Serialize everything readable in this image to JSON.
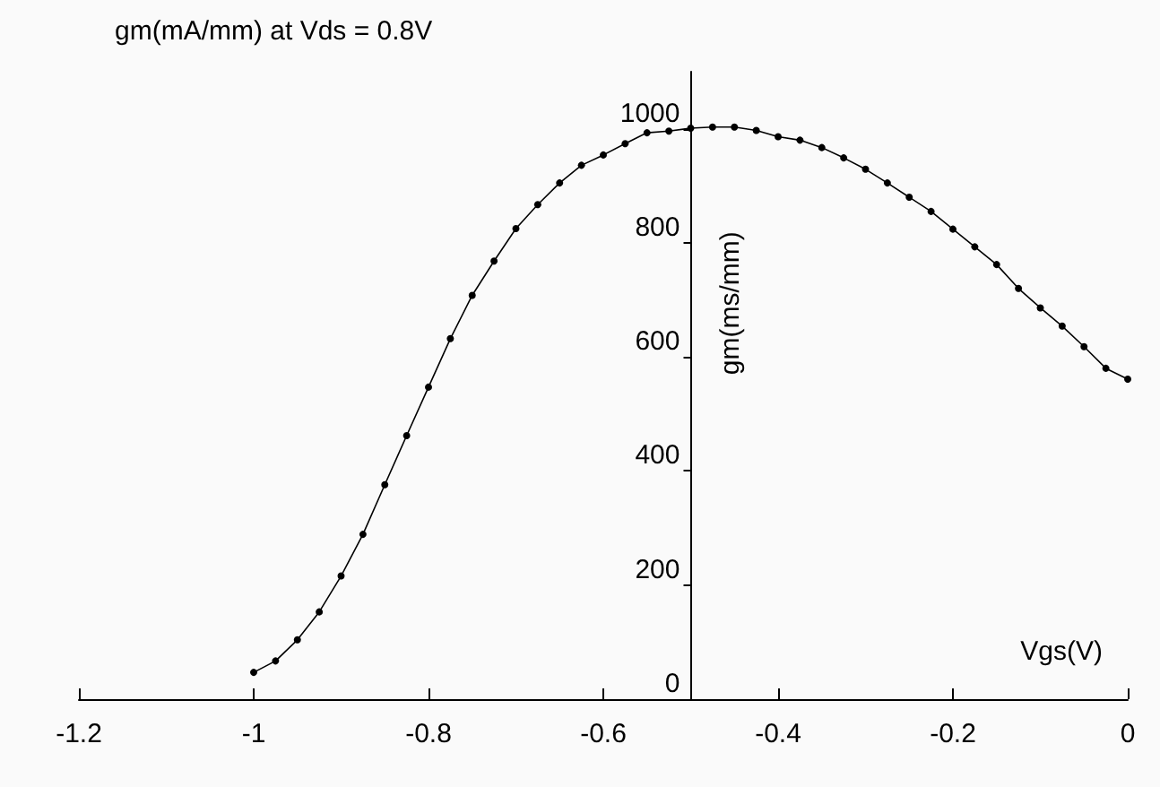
{
  "chart_data": {
    "type": "line",
    "title": "gm(mA/mm) at Vds = 0.8V",
    "xlabel": "Vgs(V)",
    "ylabel": "gm(ms/mm)",
    "x": [
      -1,
      -0.975,
      -0.95,
      -0.925,
      -0.9,
      -0.875,
      -0.85,
      -0.825,
      -0.8,
      -0.775,
      -0.75,
      -0.725,
      -0.7,
      -0.675,
      -0.65,
      -0.625,
      -0.6,
      -0.575,
      -0.55,
      -0.525,
      -0.5,
      -0.475,
      -0.45,
      -0.425,
      -0.4,
      -0.375,
      -0.35,
      -0.325,
      -0.3,
      -0.275,
      -0.25,
      -0.225,
      -0.2,
      -0.175,
      -0.15,
      -0.125,
      -0.1,
      -0.075,
      -0.05,
      -0.025,
      0
    ],
    "series": [
      {
        "color": "#000000",
        "values": [
          47,
          67,
          104,
          153,
          216,
          289,
          376,
          462,
          547,
          632,
          708,
          768,
          825,
          867,
          905,
          936,
          954,
          974,
          993,
          996,
          1001,
          1003,
          1003,
          997,
          986,
          980,
          967,
          949,
          929,
          905,
          880,
          855,
          824,
          793,
          762,
          720,
          686,
          654,
          618,
          580,
          561
        ]
      }
    ],
    "xlim": [
      -1.2,
      0
    ],
    "xticks": [
      -1.2,
      -1,
      -0.8,
      -0.6,
      -0.4,
      -0.2,
      0
    ],
    "ylim": [
      0,
      1100
    ],
    "yticks": [
      0,
      200,
      400,
      600,
      800,
      1000
    ],
    "marker": "circle",
    "line_style": "solid"
  }
}
